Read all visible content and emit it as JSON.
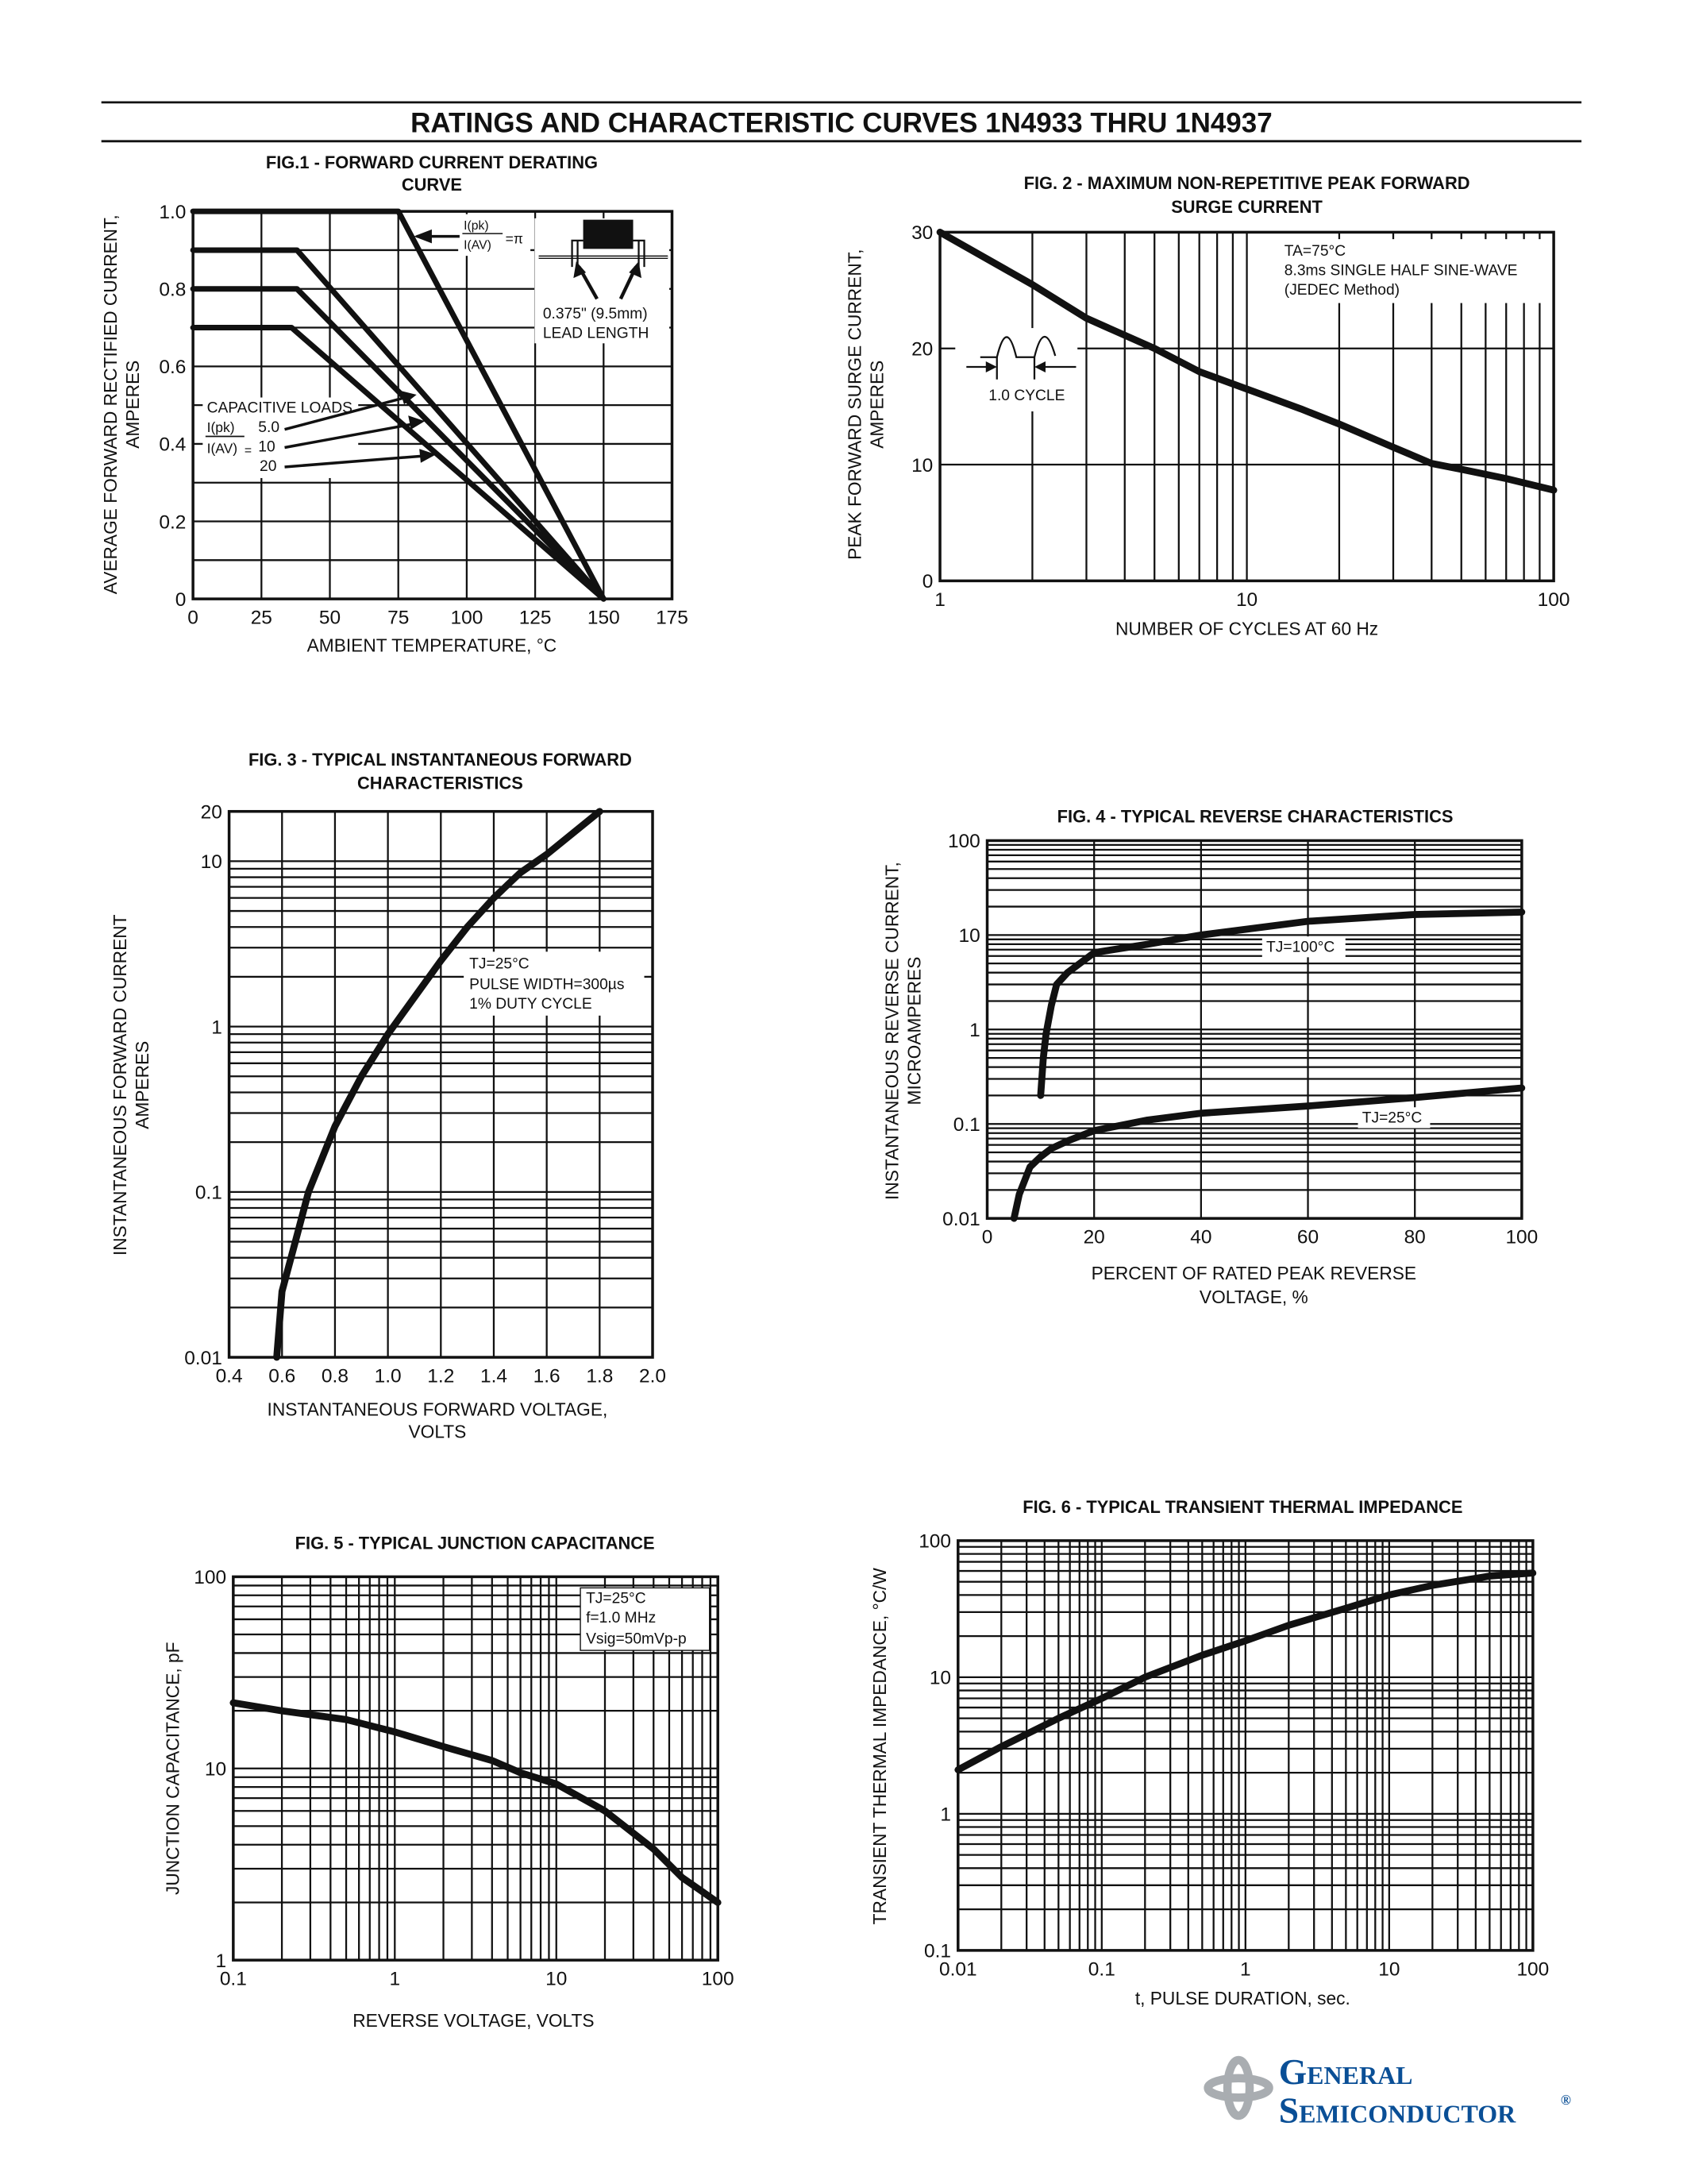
{
  "header": {
    "title": "RATINGS AND CHARACTERISTIC CURVES 1N4933 THRU 1N4937"
  },
  "logo": {
    "line1": "General",
    "line2": "Semiconductor",
    "mark": "®",
    "brand_color": "#0a4f96",
    "icon_color": "#a9adb1"
  },
  "chart_data": [
    {
      "type": "line",
      "title_lines": [
        "FIG.1 - FORWARD CURRENT DERATING",
        "CURVE"
      ],
      "xlabel": "AMBIENT TEMPERATURE, °C",
      "ylabel_lines": [
        "AVERAGE FORWARD RECTIFIED CURRENT,",
        "AMPERES"
      ],
      "xscale": "linear",
      "yscale": "linear",
      "xlim": [
        0,
        175
      ],
      "ylim": [
        0,
        1.0
      ],
      "xticks": [
        0,
        25,
        50,
        75,
        100,
        125,
        150,
        175
      ],
      "xtick_labels": [
        "0",
        "25",
        "50",
        "75",
        "100",
        "125",
        "150",
        "175"
      ],
      "yticks": [
        0,
        0.2,
        0.4,
        0.6,
        0.8,
        1.0
      ],
      "ytick_labels": [
        "0",
        "0.2",
        "0.4",
        "0.6",
        "0.8",
        "1.0"
      ],
      "grid": true,
      "series": [
        {
          "name": "=π",
          "x": [
            0,
            75,
            150
          ],
          "y": [
            1.0,
            1.0,
            0
          ]
        },
        {
          "name": "5.0",
          "x": [
            0,
            38,
            150
          ],
          "y": [
            0.9,
            0.9,
            0
          ]
        },
        {
          "name": "10",
          "x": [
            0,
            38,
            150
          ],
          "y": [
            0.8,
            0.8,
            0
          ]
        },
        {
          "name": "20",
          "x": [
            0,
            36,
            150
          ],
          "y": [
            0.7,
            0.7,
            0
          ]
        }
      ],
      "annotations": [
        "I(pk)",
        "I(AV)",
        "0.375\" (9.5mm)",
        "LEAD LENGTH",
        "CAPACITIVE LOADS",
        "I(pk)",
        "I(AV)",
        "="
      ]
    },
    {
      "type": "line",
      "title_lines": [
        "FIG. 2 - MAXIMUM NON-REPETITIVE PEAK FORWARD",
        "SURGE CURRENT"
      ],
      "xlabel": "NUMBER OF CYCLES AT 60 Hz",
      "ylabel_lines": [
        "PEAK FORWARD SURGE CURRENT,",
        "AMPERES"
      ],
      "xscale": "log",
      "yscale": "linear",
      "xlim": [
        1,
        100
      ],
      "ylim": [
        0,
        30
      ],
      "xticks": [
        1,
        10,
        100
      ],
      "xtick_labels": [
        "1",
        "10",
        "100"
      ],
      "yticks": [
        0,
        10,
        20,
        30
      ],
      "ytick_labels": [
        "0",
        "10",
        "20",
        "30"
      ],
      "grid": true,
      "series": [
        {
          "x": [
            1,
            2,
            3,
            5,
            7,
            10,
            15,
            20,
            30,
            40,
            50,
            70,
            100
          ],
          "y": [
            30,
            25.5,
            22.6,
            20,
            18,
            16.5,
            14.8,
            13.5,
            11.5,
            10.1,
            9.6,
            8.8,
            7.8
          ]
        }
      ],
      "annotations": [
        "TA=75°C",
        "8.3ms SINGLE HALF SINE-WAVE",
        "(JEDEC Method)",
        "1.0 CYCLE"
      ]
    },
    {
      "type": "line",
      "title_lines": [
        "FIG. 3 - TYPICAL INSTANTANEOUS FORWARD",
        "CHARACTERISTICS"
      ],
      "xlabel_lines": [
        "INSTANTANEOUS FORWARD VOLTAGE,",
        "VOLTS"
      ],
      "ylabel_lines": [
        "INSTANTANEOUS FORWARD CURRENT",
        "AMPERES"
      ],
      "xscale": "linear",
      "yscale": "log",
      "xlim": [
        0.4,
        2.0
      ],
      "ylim": [
        0.01,
        20
      ],
      "xticks": [
        0.4,
        0.6,
        0.8,
        1.0,
        1.2,
        1.4,
        1.6,
        1.8,
        2.0
      ],
      "xtick_labels": [
        "0.4",
        "0.6",
        "0.8",
        "1.0",
        "1.2",
        "1.4",
        "1.6",
        "1.8",
        "2.0"
      ],
      "yticks": [
        0.01,
        0.1,
        1,
        10,
        20
      ],
      "ytick_labels": [
        "0.01",
        "0.1",
        "1",
        "10",
        "20"
      ],
      "grid": true,
      "series": [
        {
          "x": [
            0.58,
            0.6,
            0.65,
            0.7,
            0.8,
            0.9,
            1.0,
            1.1,
            1.2,
            1.3,
            1.4,
            1.5,
            1.6,
            1.8
          ],
          "y": [
            0.01,
            0.025,
            0.05,
            0.1,
            0.25,
            0.5,
            0.9,
            1.5,
            2.5,
            4,
            6,
            8.5,
            11,
            20
          ]
        }
      ],
      "annotations": [
        "TJ=25°C",
        "PULSE WIDTH=300µs",
        "1% DUTY CYCLE"
      ]
    },
    {
      "type": "line",
      "title_lines": [
        "FIG. 4 - TYPICAL REVERSE CHARACTERISTICS"
      ],
      "xlabel_lines": [
        "PERCENT OF RATED PEAK REVERSE",
        "VOLTAGE, %"
      ],
      "ylabel_lines": [
        "INSTANTANEOUS REVERSE CURRENT,",
        "MICROAMPERES"
      ],
      "xscale": "linear",
      "yscale": "log",
      "xlim": [
        0,
        100
      ],
      "ylim": [
        0.01,
        100
      ],
      "xticks": [
        0,
        20,
        40,
        60,
        80,
        100
      ],
      "xtick_labels": [
        "0",
        "20",
        "40",
        "60",
        "80",
        "100"
      ],
      "yticks": [
        0.01,
        0.1,
        1,
        10,
        100
      ],
      "ytick_labels": [
        "0.01",
        "0.1",
        "1",
        "10",
        "100"
      ],
      "grid": true,
      "series": [
        {
          "name": "TJ=100°C",
          "x": [
            10,
            10.5,
            11,
            12,
            13,
            15,
            20,
            30,
            40,
            60,
            80,
            100
          ],
          "y": [
            0.2,
            0.5,
            0.9,
            1.8,
            3,
            4,
            6.5,
            8,
            10,
            14,
            16.5,
            17.5
          ]
        },
        {
          "name": "TJ=25°C",
          "x": [
            5,
            6,
            8,
            10,
            12,
            15,
            20,
            30,
            40,
            60,
            80,
            100
          ],
          "y": [
            0.01,
            0.018,
            0.035,
            0.045,
            0.055,
            0.066,
            0.085,
            0.11,
            0.13,
            0.155,
            0.19,
            0.24
          ]
        }
      ]
    },
    {
      "type": "line",
      "title_lines": [
        "FIG. 5 - TYPICAL JUNCTION CAPACITANCE"
      ],
      "xlabel": "REVERSE VOLTAGE, VOLTS",
      "ylabel_lines": [
        "JUNCTION CAPACITANCE, pF"
      ],
      "xscale": "log",
      "yscale": "log",
      "xlim": [
        0.1,
        100
      ],
      "ylim": [
        1,
        100
      ],
      "xticks": [
        0.1,
        1,
        10,
        100
      ],
      "xtick_labels": [
        "0.1",
        "1",
        "10",
        "100"
      ],
      "yticks": [
        1,
        10,
        100
      ],
      "ytick_labels": [
        "1",
        "10",
        "100"
      ],
      "grid": true,
      "series": [
        {
          "x": [
            0.1,
            0.2,
            0.5,
            1,
            2,
            4,
            6,
            10,
            20,
            40,
            60,
            100
          ],
          "y": [
            22,
            20,
            18,
            15.5,
            13,
            11,
            9.5,
            8.3,
            6,
            3.8,
            2.7,
            2
          ]
        }
      ],
      "annotations": [
        "TJ=25°C",
        "f=1.0 MHz",
        "Vsig=50mVp-p"
      ]
    },
    {
      "type": "line",
      "title_lines": [
        "FIG. 6 - TYPICAL TRANSIENT THERMAL IMPEDANCE"
      ],
      "xlabel": "t, PULSE DURATION, sec.",
      "ylabel_lines": [
        "TRANSIENT THERMAL IMPEDANCE, °C/W"
      ],
      "xscale": "log",
      "yscale": "log",
      "xlim": [
        0.01,
        100
      ],
      "ylim": [
        0.1,
        100
      ],
      "xticks": [
        0.01,
        0.1,
        1,
        10,
        100
      ],
      "xtick_labels": [
        "0.01",
        "0.1",
        "1",
        "10",
        "100"
      ],
      "yticks": [
        0.1,
        1,
        10,
        100
      ],
      "ytick_labels": [
        "0.1",
        "1",
        "10",
        "100"
      ],
      "grid": true,
      "series": [
        {
          "x": [
            0.01,
            0.02,
            0.05,
            0.1,
            0.2,
            0.5,
            1,
            2,
            5,
            10,
            20,
            50,
            100
          ],
          "y": [
            2.1,
            3.1,
            5,
            7,
            10,
            14.5,
            18.5,
            24,
            32,
            40,
            47,
            55,
            58
          ]
        }
      ]
    }
  ]
}
